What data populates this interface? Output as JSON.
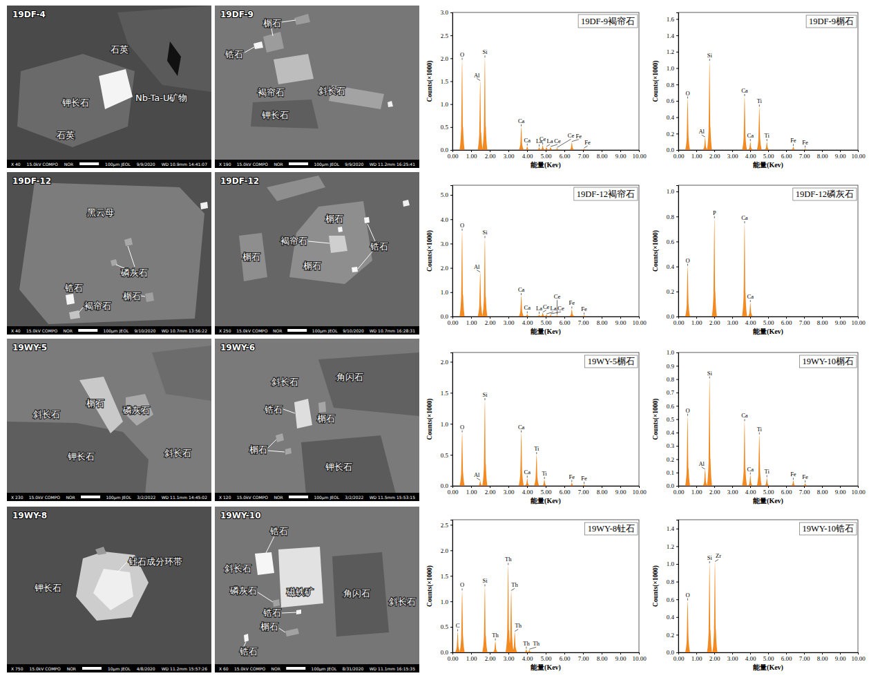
{
  "images": [
    {
      "sample": "19DF-4",
      "labels": [
        "石英",
        "Nb-Ta-U矿物",
        "钾长石",
        "石英"
      ],
      "footer": [
        "X 40",
        "15.0kV COMPO",
        "NOR",
        "100μm JEOL",
        "9/9/2020",
        "WD 10.9mm 14:41:07"
      ]
    },
    {
      "sample": "19DF-9",
      "labels": [
        "榍石",
        "锆石",
        "褐帘石",
        "斜长石",
        "钾长石"
      ],
      "footer": [
        "X 190",
        "15.0kV COMPO",
        "NOR",
        "100μm JEOL",
        "9/9/2020",
        "WD 11.2mm 16:25:41"
      ]
    },
    {
      "sample": "19DF-12",
      "labels": [
        "黑云母",
        "磷灰石",
        "锆石",
        "褐帘石",
        "榍石"
      ],
      "footer": [
        "X 40",
        "15.0kV COMPO",
        "NOR",
        "100μm JEOL",
        "9/10/2020",
        "WD 10.7mm 13:56:22"
      ]
    },
    {
      "sample": "19DF-12",
      "labels": [
        "榍石",
        "褐帘石",
        "锆石",
        "榍石",
        "榍石"
      ],
      "footer": [
        "X 250",
        "15.0kV COMPO",
        "NOR",
        "100μm JEOL",
        "9/10/2020",
        "WD 10.7mm 16:28:31"
      ]
    },
    {
      "sample": "19WY-5",
      "labels": [
        "斜长石",
        "榍石",
        "磷灰石",
        "钾长石",
        "斜长石"
      ],
      "footer": [
        "X 230",
        "15.0kV COMPO",
        "NOR",
        "100μm JEOL",
        "3/2/2022",
        "WD 11.1mm 14:45:02"
      ]
    },
    {
      "sample": "19WY-6",
      "labels": [
        "斜长石",
        "角闪石",
        "锆石",
        "榍石",
        "榍石",
        "钾长石"
      ],
      "footer": [
        "X 120",
        "15.0kV COMPO",
        "NOR",
        "100μm JEOL",
        "3/2/2022",
        "WD 11.5mm 15:53:15"
      ]
    },
    {
      "sample": "19WY-8",
      "labels": [
        "钾长石",
        "钍石成分环带"
      ],
      "footer": [
        "X 750",
        "15.0kV COMPO",
        "NOR",
        "10μm JEOL",
        "4/8/2020",
        "WD 11.2mm 15:57:26"
      ]
    },
    {
      "sample": "19WY-10",
      "labels": [
        "锆石",
        "斜长石",
        "磁铁矿",
        "角闪石",
        "斜长石",
        "磷灰石",
        "锆石",
        "榍石",
        "锆石"
      ],
      "footer": [
        "X 60",
        "15.0kV COMPO",
        "NOR",
        "100μm JEOL",
        "8/31/2020",
        "WD 11.1mm 16:15:35"
      ]
    }
  ],
  "chart_data": [
    {
      "type": "spectrum",
      "title": "19DF-9褐帘石",
      "x_label": "能量(Kev)",
      "y_label": "Counts(×1000)",
      "color": "#f28a21",
      "x": [
        0.52,
        1.49,
        1.74,
        3.69,
        4.01,
        4.65,
        4.84,
        5.04,
        5.26,
        5.61,
        6.4,
        7.06
      ],
      "values": [
        1.95,
        1.5,
        2.0,
        0.5,
        0.08,
        0.06,
        0.1,
        0.06,
        0.06,
        0.04,
        0.17,
        0.03
      ],
      "peak_labels": [
        "O",
        "Al",
        "Si",
        "Ca",
        "Ca",
        "La",
        "Ce",
        "La",
        "Ce",
        "Ce",
        "Fe",
        "Fe"
      ],
      "xlim": [
        0,
        10
      ],
      "xticks": [
        {
          "value": 0,
          "label": "0.00"
        },
        {
          "value": 1,
          "label": "1.00"
        },
        {
          "value": 2,
          "label": "2.00"
        },
        {
          "value": 3,
          "label": "3.00"
        },
        {
          "value": 4,
          "label": "4.00"
        },
        {
          "value": 5,
          "label": "5.00"
        },
        {
          "value": 6,
          "label": "6.00"
        },
        {
          "value": 7,
          "label": "7.00"
        },
        {
          "value": 8,
          "label": "8.00"
        },
        {
          "value": 9,
          "label": "9.00"
        },
        {
          "value": 10,
          "label": "10.00"
        }
      ],
      "ylim": [
        0,
        3
      ],
      "yticks": [
        {
          "value": 0,
          "label": "0.0"
        },
        0.5,
        {
          "value": 1,
          "label": "1.0"
        },
        1.5,
        {
          "value": 2,
          "label": "2.0"
        },
        2.5,
        {
          "value": 3,
          "label": "3.0"
        }
      ]
    },
    {
      "type": "spectrum",
      "title": "19DF-9榍石",
      "x_label": "能量(Kev)",
      "y_label": "Counts(×1000)",
      "color": "#f28a21",
      "x": [
        0.52,
        1.49,
        1.74,
        3.69,
        4.01,
        4.51,
        4.93,
        6.4,
        7.06
      ],
      "values": [
        0.62,
        0.15,
        1.08,
        0.65,
        0.1,
        0.52,
        0.1,
        0.04,
        0.02
      ],
      "peak_labels": [
        "O",
        "Al",
        "Si",
        "Ca",
        "Ca",
        "Ti",
        "Ti",
        "Fe",
        "Fe"
      ],
      "xlim": [
        0,
        10
      ],
      "xticks": [
        {
          "value": 0,
          "label": "0.00"
        },
        {
          "value": 1,
          "label": "1.00"
        },
        {
          "value": 2,
          "label": "2.00"
        },
        {
          "value": 3,
          "label": "3.00"
        },
        {
          "value": 4,
          "label": "4.00"
        },
        {
          "value": 5,
          "label": "5.00"
        },
        {
          "value": 6,
          "label": "6.00"
        },
        {
          "value": 7,
          "label": "7.00"
        },
        {
          "value": 8,
          "label": "8.00"
        },
        {
          "value": 9,
          "label": "9.00"
        },
        {
          "value": 10,
          "label": "10.00"
        }
      ],
      "ylim": [
        0,
        1.68
      ],
      "yticks": [
        {
          "value": 0,
          "label": "0.0"
        },
        0.2,
        0.4,
        0.6,
        0.8,
        {
          "value": 1,
          "label": "1.0"
        },
        1.2,
        1.4,
        1.6
      ]
    },
    {
      "type": "spectrum",
      "title": "19DF-12褐帘石",
      "x_label": "能量(Kev)",
      "y_label": "Counts(×1000)",
      "color": "#f28a21",
      "x": [
        0.52,
        1.49,
        1.74,
        3.69,
        4.01,
        4.65,
        4.84,
        5.04,
        5.26,
        5.61,
        6.4,
        7.06
      ],
      "values": [
        3.5,
        1.8,
        3.2,
        0.85,
        0.1,
        0.08,
        0.15,
        0.08,
        0.08,
        0.05,
        0.3,
        0.05
      ],
      "peak_labels": [
        "O",
        "Al",
        "Si",
        "Ca",
        "Ca",
        "La",
        "Ce",
        "La",
        "Ce",
        "Ce",
        "Fe",
        "Fe"
      ],
      "xlim": [
        0,
        10
      ],
      "xticks": [
        {
          "value": 0,
          "label": "0.00"
        },
        {
          "value": 1,
          "label": "1.00"
        },
        {
          "value": 2,
          "label": "2.00"
        },
        {
          "value": 3,
          "label": "3.00"
        },
        {
          "value": 4,
          "label": "4.00"
        },
        {
          "value": 5,
          "label": "5.00"
        },
        {
          "value": 6,
          "label": "6.00"
        },
        {
          "value": 7,
          "label": "7.00"
        },
        {
          "value": 8,
          "label": "8.00"
        },
        {
          "value": 9,
          "label": "9.00"
        },
        {
          "value": 10,
          "label": "10.00"
        }
      ],
      "ylim": [
        0,
        5.4
      ],
      "yticks": [
        {
          "value": 0,
          "label": "0.0"
        },
        {
          "value": 1,
          "label": "1.0"
        },
        {
          "value": 2,
          "label": "2.0"
        },
        {
          "value": 3,
          "label": "3.0"
        },
        {
          "value": 4,
          "label": "4.0"
        },
        {
          "value": 5,
          "label": "5.0"
        }
      ]
    },
    {
      "type": "spectrum",
      "title": "19DF-12磷灰石",
      "x_label": "能量(Kev)",
      "y_label": "Counts(×1000)",
      "color": "#f28a21",
      "x": [
        0.52,
        2.01,
        3.69,
        4.01
      ],
      "values": [
        0.4,
        0.78,
        0.74,
        0.11
      ],
      "peak_labels": [
        "O",
        "P",
        "Ca",
        "Ca"
      ],
      "xlim": [
        0,
        10
      ],
      "xticks": [
        {
          "value": 0,
          "label": "0.00"
        },
        {
          "value": 1,
          "label": "1.00"
        },
        {
          "value": 2,
          "label": "2.00"
        },
        {
          "value": 3,
          "label": "3.00"
        },
        {
          "value": 4,
          "label": "4.00"
        },
        {
          "value": 5,
          "label": "5.00"
        },
        {
          "value": 6,
          "label": "6.00"
        },
        {
          "value": 7,
          "label": "7.00"
        },
        {
          "value": 8,
          "label": "8.00"
        },
        {
          "value": 9,
          "label": "9.00"
        },
        {
          "value": 10,
          "label": "10.00"
        }
      ],
      "ylim": [
        0,
        1.05
      ],
      "yticks": [
        {
          "value": 0,
          "label": "0.0"
        },
        0.2,
        0.4,
        0.6,
        0.8,
        {
          "value": 1,
          "label": "1.0"
        }
      ]
    },
    {
      "type": "spectrum",
      "title": "19WY-5榍石",
      "x_label": "能量(Kev)",
      "y_label": "Counts(×1000)",
      "color": "#f28a21",
      "x": [
        0.52,
        1.49,
        1.74,
        3.69,
        4.01,
        4.51,
        4.93,
        6.4,
        7.06
      ],
      "values": [
        0.85,
        0.08,
        1.37,
        0.85,
        0.12,
        0.5,
        0.1,
        0.05,
        0.02
      ],
      "peak_labels": [
        "O",
        "Al",
        "Si",
        "Ca",
        "Ca",
        "Ti",
        "Ti",
        "Fe",
        "Fe"
      ],
      "xlim": [
        0,
        10
      ],
      "xticks": [
        {
          "value": 0,
          "label": "0.00"
        },
        {
          "value": 1,
          "label": "1.00"
        },
        {
          "value": 2,
          "label": "2.00"
        },
        {
          "value": 3,
          "label": "3.00"
        },
        {
          "value": 4,
          "label": "4.00"
        },
        {
          "value": 5,
          "label": "5.00"
        },
        {
          "value": 6,
          "label": "6.00"
        },
        {
          "value": 7,
          "label": "7.00"
        },
        {
          "value": 8,
          "label": "8.00"
        },
        {
          "value": 9,
          "label": "9.00"
        },
        {
          "value": 10,
          "label": "10.00"
        }
      ],
      "ylim": [
        0,
        2.15
      ],
      "yticks": [
        {
          "value": 0,
          "label": "0.0"
        },
        0.5,
        {
          "value": 1,
          "label": "1.0"
        },
        1.5,
        {
          "value": 2,
          "label": "2.0"
        }
      ]
    },
    {
      "type": "spectrum",
      "title": "19WY-10榍石",
      "x_label": "能量(Kev)",
      "y_label": "Counts(×1000)",
      "color": "#f28a21",
      "x": [
        0.52,
        1.49,
        1.74,
        3.69,
        4.01,
        4.51,
        4.93,
        6.4,
        7.06
      ],
      "values": [
        0.52,
        0.12,
        0.8,
        0.48,
        0.08,
        0.38,
        0.06,
        0.04,
        0.02
      ],
      "peak_labels": [
        "O",
        "Al",
        "Si",
        "Ca",
        "Ca",
        "Ti",
        "Ti",
        "Fe",
        "Fe"
      ],
      "xlim": [
        0,
        10
      ],
      "xticks": [
        {
          "value": 0,
          "label": "0.00"
        },
        {
          "value": 1,
          "label": "1.00"
        },
        {
          "value": 2,
          "label": "2.00"
        },
        {
          "value": 3,
          "label": "3.00"
        },
        {
          "value": 4,
          "label": "4.00"
        },
        {
          "value": 5,
          "label": "5.00"
        },
        {
          "value": 6,
          "label": "6.00"
        },
        {
          "value": 7,
          "label": "7.00"
        },
        {
          "value": 8,
          "label": "8.00"
        },
        {
          "value": 9,
          "label": "9.00"
        },
        {
          "value": 10,
          "label": "10.00"
        }
      ],
      "ylim": [
        0,
        1
      ],
      "yticks": [
        {
          "value": 0,
          "label": "0.0"
        },
        0.1,
        0.2,
        0.3,
        0.4,
        0.5,
        0.6,
        0.7,
        0.8,
        0.9,
        {
          "value": 1,
          "label": "1.0"
        }
      ]
    },
    {
      "type": "spectrum",
      "title": "19WY-8钍石",
      "x_label": "能量(Kev)",
      "y_label": "Counts(×1000)",
      "color": "#f28a21",
      "x": [
        0.28,
        0.52,
        1.74,
        2.3,
        2.99,
        3.15,
        3.34,
        3.96,
        4.12
      ],
      "values": [
        0.4,
        1.2,
        1.28,
        0.22,
        1.7,
        1.2,
        0.4,
        0.06,
        0.05
      ],
      "peak_labels": [
        "C",
        "O",
        "Si",
        "Th",
        "Th",
        "Th",
        "Th",
        "Th",
        "Th"
      ],
      "xlim": [
        0,
        10
      ],
      "xticks": [
        {
          "value": 0,
          "label": "0.00"
        },
        {
          "value": 1,
          "label": "1.00"
        },
        {
          "value": 2,
          "label": "2.00"
        },
        {
          "value": 3,
          "label": "3.00"
        },
        {
          "value": 4,
          "label": "4.00"
        },
        {
          "value": 5,
          "label": "5.00"
        },
        {
          "value": 6,
          "label": "6.00"
        },
        {
          "value": 7,
          "label": "7.00"
        },
        {
          "value": 8,
          "label": "8.00"
        },
        {
          "value": 9,
          "label": "9.00"
        },
        {
          "value": 10,
          "label": "10.00"
        }
      ],
      "ylim": [
        0,
        2.6
      ],
      "yticks": [
        {
          "value": 0,
          "label": "0.0"
        },
        0.5,
        {
          "value": 1,
          "label": "1.0"
        },
        1.5,
        {
          "value": 2,
          "label": "2.0"
        },
        2.5
      ]
    },
    {
      "type": "spectrum",
      "title": "19WY-10锆石",
      "x_label": "能量(Kev)",
      "y_label": "Counts(×1000)",
      "color": "#f28a21",
      "x": [
        0.52,
        1.74,
        2.04
      ],
      "values": [
        0.58,
        1.0,
        1.02
      ],
      "peak_labels": [
        "O",
        "Si",
        "Zr"
      ],
      "xlim": [
        0,
        10
      ],
      "xticks": [
        {
          "value": 0,
          "label": "0.00"
        },
        {
          "value": 1,
          "label": "1.00"
        },
        {
          "value": 2,
          "label": "2.00"
        },
        {
          "value": 3,
          "label": "3.00"
        },
        {
          "value": 4,
          "label": "4.00"
        },
        {
          "value": 5,
          "label": "5.00"
        },
        {
          "value": 6,
          "label": "6.00"
        },
        {
          "value": 7,
          "label": "7.00"
        },
        {
          "value": 8,
          "label": "8.00"
        },
        {
          "value": 9,
          "label": "9.00"
        },
        {
          "value": 10,
          "label": "10.00"
        }
      ],
      "ylim": [
        0,
        1.5
      ],
      "yticks": [
        {
          "value": 0,
          "label": "0.0"
        },
        0.2,
        0.4,
        0.6,
        0.8,
        {
          "value": 1,
          "label": "1.0"
        },
        1.2,
        1.4
      ]
    }
  ]
}
